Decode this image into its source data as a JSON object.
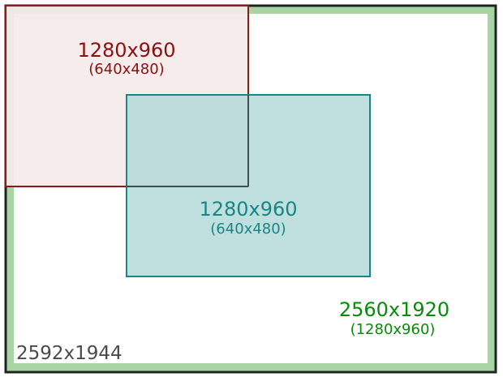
{
  "sensor": {
    "label": "2592x1944",
    "color": "#4a4a4a"
  },
  "active_area": {
    "label": "2560x1920",
    "sub_label": "(1280x960)",
    "color": "#0a8a0a",
    "band_color": "#a8d5a3"
  },
  "crop_a": {
    "label": "1280x960",
    "sub_label": "(640x480)",
    "color": "#8b1010",
    "fill": "#f5eaea"
  },
  "crop_b": {
    "label": "1280x960",
    "sub_label": "(640x480)",
    "color": "#1a8585",
    "fill": "#bfe0df"
  }
}
